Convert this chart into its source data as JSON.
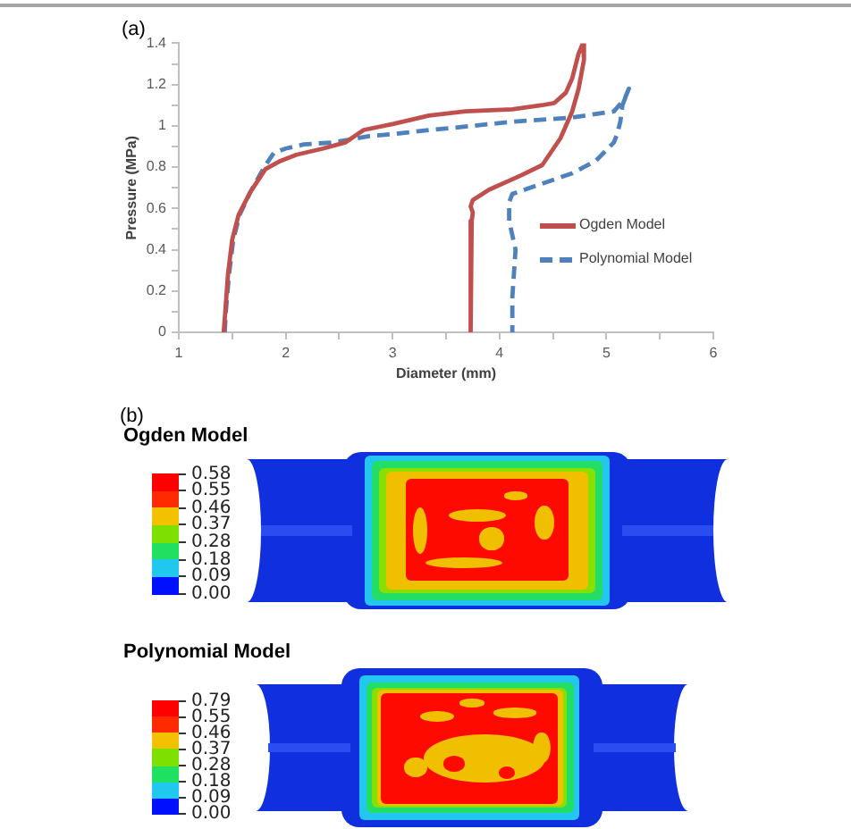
{
  "chart_data": [
    {
      "type": "line",
      "title": "(a)",
      "xlabel": "Diameter (mm)",
      "ylabel": "Pressure (MPa)",
      "xlim": [
        1,
        6
      ],
      "ylim": [
        0,
        1.4
      ],
      "xticks": [
        1,
        {
          "value": 1.5,
          "label": null
        },
        2,
        {
          "value": 2.5,
          "label": null
        },
        3,
        {
          "value": 3.5,
          "label": null
        },
        4,
        {
          "value": 4.5,
          "label": null
        },
        5,
        {
          "value": 5.5,
          "label": null
        },
        6
      ],
      "yticks": [
        0,
        {
          "value": 0.1,
          "label": null
        },
        0.2,
        {
          "value": 0.3,
          "label": null
        },
        0.4,
        {
          "value": 0.5,
          "label": null
        },
        0.6,
        {
          "value": 0.7,
          "label": null
        },
        0.8,
        {
          "value": 0.9,
          "label": null
        },
        1,
        {
          "value": 1.1,
          "label": null
        },
        1.2,
        {
          "value": 1.3,
          "label": null
        },
        1.4
      ],
      "grid": false,
      "legend": "right",
      "marker": "none",
      "series": [
        {
          "name": "Ogden Model",
          "color": "#c0504d",
          "line_style": "solid",
          "x": [
            1.42,
            1.435,
            1.46,
            1.5,
            1.56,
            1.67,
            1.81,
            1.95,
            2.1,
            2.35,
            2.56,
            2.73,
            3.01,
            3.34,
            3.68,
            4.12,
            4.4,
            4.51,
            4.62,
            4.68,
            4.74,
            4.78,
            4.79,
            4.74,
            4.68,
            4.57,
            4.4,
            4.2,
            3.9,
            3.75,
            3.73,
            3.75,
            3.74,
            3.73
          ],
          "values": [
            0,
            0.1,
            0.28,
            0.45,
            0.57,
            0.68,
            0.79,
            0.83,
            0.86,
            0.89,
            0.92,
            0.98,
            1.01,
            1.05,
            1.07,
            1.08,
            1.1,
            1.11,
            1.16,
            1.23,
            1.35,
            1.4,
            1.32,
            1.18,
            1.07,
            0.94,
            0.81,
            0.76,
            0.69,
            0.64,
            0.61,
            0.58,
            0.54,
            0
          ]
        },
        {
          "name": "Polynomial Model",
          "color": "#4f81bd",
          "line_style": "dashed",
          "x": [
            1.43,
            1.44,
            1.47,
            1.51,
            1.57,
            1.67,
            1.8,
            1.89,
            2,
            2.17,
            2.45,
            2.78,
            3.01,
            3.34,
            3.56,
            4.12,
            4.68,
            5.07,
            5.17,
            5.21,
            5.15,
            5.13,
            5.1,
            5.07,
            4.9,
            4.68,
            4.34,
            4.12,
            4.09,
            4.09,
            4.15,
            4.12,
            4.12
          ],
          "values": [
            0,
            0.1,
            0.28,
            0.45,
            0.57,
            0.68,
            0.8,
            0.87,
            0.89,
            0.91,
            0.92,
            0.95,
            0.96,
            0.98,
            0.99,
            1.02,
            1.04,
            1.07,
            1.13,
            1.18,
            1.1,
            1.02,
            0.96,
            0.92,
            0.83,
            0.77,
            0.71,
            0.67,
            0.63,
            0.54,
            0.4,
            0.17,
            0
          ]
        }
      ]
    },
    {
      "type": "other",
      "title": "(b)",
      "subtitle": "Ogden Model",
      "annotations": [
        "0.58",
        "0.55",
        "0.46",
        "0.37",
        "0.28",
        "0.18",
        "0.09",
        "0.00"
      ]
    },
    {
      "type": "other",
      "subtitle": "Polynomial Model",
      "annotations": [
        "0.79",
        "0.55",
        "0.46",
        "0.37",
        "0.28",
        "0.18",
        "0.09",
        "0.00"
      ]
    }
  ]
}
